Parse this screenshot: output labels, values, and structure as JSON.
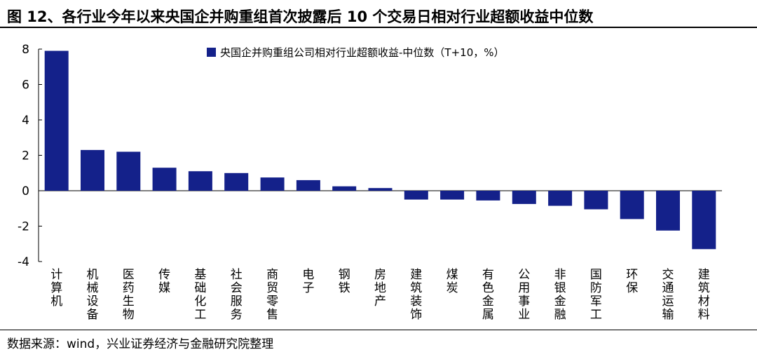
{
  "title": "图 12、各行业今年以来央国企并购重组首次披露后 10 个交易日相对行业超额收益中位数",
  "source": "数据来源：wind，兴业证券经济与金融研究院整理",
  "chart_data": {
    "type": "bar",
    "categories": [
      "计算机",
      "机械设备",
      "医药生物",
      "传媒",
      "基础化工",
      "社会服务",
      "商贸零售",
      "电子",
      "钢铁",
      "房地产",
      "建筑装饰",
      "煤炭",
      "有色金属",
      "公用事业",
      "非银金融",
      "国防军工",
      "环保",
      "交通运输",
      "建筑材料"
    ],
    "series": [
      {
        "name": "央国企并购重组公司相对行业超额收益-中位数（T+10，%）",
        "values": [
          7.9,
          2.3,
          2.2,
          1.3,
          1.1,
          1.0,
          0.75,
          0.6,
          0.25,
          0.15,
          -0.5,
          -0.5,
          -0.55,
          -0.75,
          -0.85,
          -1.05,
          -1.6,
          -2.25,
          -3.3
        ],
        "color": "#14218a"
      }
    ],
    "yticks": [
      8,
      6,
      4,
      2,
      0,
      -2,
      -4
    ],
    "ylim": [
      -4,
      8
    ],
    "legend_position": "top",
    "grid": false
  }
}
